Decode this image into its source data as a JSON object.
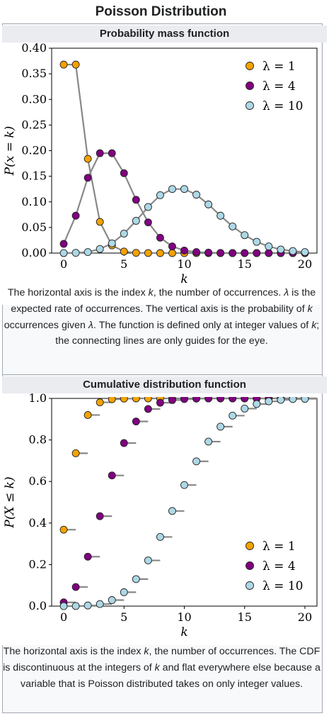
{
  "title": "Poisson Distribution",
  "pmf": {
    "header": "Probability mass function",
    "caption": "The horizontal axis is the index k, the number of occurrences. λ is the expected rate of occurrences. The vertical axis is the probability of k occurrences given λ. The function is defined only at integer values of k; the connecting lines are only guides for the eye."
  },
  "cdf": {
    "header": "Cumulative distribution function",
    "caption": "The horizontal axis is the index k, the number of occurrences. The CDF is discontinuous at the integers of k and flat everywhere else because a variable that is Poisson distributed takes on only integer values."
  },
  "chart_data": [
    {
      "type": "line",
      "title": "",
      "xlabel": "k",
      "ylabel": "P(x = k)",
      "xlim": [
        -1,
        21
      ],
      "ylim": [
        0,
        0.4
      ],
      "xticks": [
        "0",
        "5",
        "10",
        "15",
        "20"
      ],
      "yticks": [
        "0.00",
        "0.05",
        "0.10",
        "0.15",
        "0.20",
        "0.25",
        "0.30",
        "0.35",
        "0.40"
      ],
      "grid": false,
      "legend": "top-right",
      "x": [
        0,
        1,
        2,
        3,
        4,
        5,
        6,
        7,
        8,
        9,
        10,
        11,
        12,
        13,
        14,
        15,
        16,
        17,
        18,
        19,
        20
      ],
      "series": [
        {
          "name": "λ = 1",
          "color": "#f5a200",
          "values": [
            0.368,
            0.368,
            0.184,
            0.061,
            0.015,
            0.003,
            0.0005,
            0.0001,
            0,
            0,
            0,
            0,
            0,
            0,
            0,
            0,
            0,
            0,
            0,
            0,
            0
          ]
        },
        {
          "name": "λ = 4",
          "color": "#800080",
          "values": [
            0.018,
            0.073,
            0.147,
            0.195,
            0.195,
            0.156,
            0.104,
            0.06,
            0.03,
            0.013,
            0.005,
            0.002,
            0.001,
            0.0002,
            0,
            0,
            0,
            0,
            0,
            0,
            0
          ]
        },
        {
          "name": "λ = 10",
          "color": "#add8e6",
          "values": [
            5e-05,
            0.0005,
            0.002,
            0.008,
            0.019,
            0.038,
            0.063,
            0.09,
            0.113,
            0.125,
            0.125,
            0.114,
            0.095,
            0.073,
            0.052,
            0.035,
            0.022,
            0.013,
            0.007,
            0.004,
            0.002
          ]
        }
      ]
    },
    {
      "type": "scatter",
      "title": "",
      "xlabel": "k",
      "ylabel": "P(X ≤ k)",
      "xlim": [
        -1,
        21
      ],
      "ylim": [
        0,
        1.0
      ],
      "xticks": [
        "0",
        "5",
        "10",
        "15",
        "20"
      ],
      "yticks": [
        "0.0",
        "0.2",
        "0.4",
        "0.6",
        "0.8",
        "1.0"
      ],
      "grid": false,
      "legend": "bottom-right",
      "x": [
        0,
        1,
        2,
        3,
        4,
        5,
        6,
        7,
        8,
        9,
        10,
        11,
        12,
        13,
        14,
        15,
        16,
        17,
        18,
        19,
        20
      ],
      "series": [
        {
          "name": "λ = 1",
          "color": "#f5a200",
          "values": [
            0.368,
            0.736,
            0.92,
            0.981,
            0.996,
            0.999,
            1,
            1,
            1,
            1,
            1,
            1,
            1,
            1,
            1,
            1,
            1,
            1,
            1,
            1,
            1
          ]
        },
        {
          "name": "λ = 4",
          "color": "#800080",
          "values": [
            0.018,
            0.092,
            0.238,
            0.433,
            0.629,
            0.785,
            0.889,
            0.949,
            0.979,
            0.992,
            0.997,
            0.999,
            1,
            1,
            1,
            1,
            1,
            1,
            1,
            1,
            1
          ]
        },
        {
          "name": "λ = 10",
          "color": "#add8e6",
          "values": [
            5e-05,
            0.0005,
            0.003,
            0.01,
            0.029,
            0.067,
            0.13,
            0.22,
            0.333,
            0.458,
            0.583,
            0.697,
            0.792,
            0.864,
            0.917,
            0.951,
            0.973,
            0.986,
            0.993,
            0.997,
            0.998
          ]
        }
      ]
    }
  ]
}
